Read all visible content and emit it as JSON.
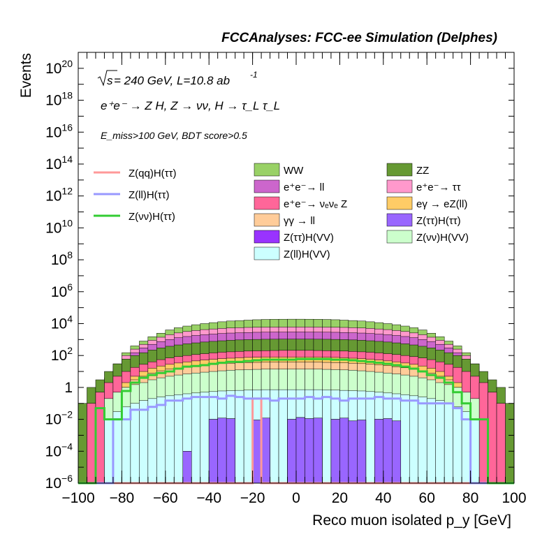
{
  "header": {
    "title": "FCCAnalyses: FCC-ee Simulation (Delphes)",
    "line1_sqrt": "s",
    "line1_rest": " = 240 GeV, L=10.8 ab",
    "line1_sup": "-1",
    "line2": "e⁺e⁻ → Z H, Z → νν, H → τ_L τ_L",
    "line3": "E_miss>100 GeV, BDT score>0.5"
  },
  "chart_data": {
    "type": "area",
    "xlabel": "Reco muon isolated p_y [GeV]",
    "ylabel": "Events",
    "xlim": [
      -100,
      100
    ],
    "ylim": [
      1e-06,
      1e+21
    ],
    "log_y": true,
    "x_ticks": [
      -100,
      -80,
      -60,
      -40,
      -20,
      0,
      20,
      40,
      60,
      80,
      100
    ],
    "x_tick_labels": [
      "−100",
      "−80",
      "−60",
      "−40",
      "−20",
      "0",
      "20",
      "40",
      "60",
      "80",
      "100"
    ],
    "y_ticks": [
      {
        "value": 1e-06,
        "base": "10",
        "exp": "−6"
      },
      {
        "value": 0.0001,
        "base": "10",
        "exp": "−4"
      },
      {
        "value": 0.01,
        "base": "10",
        "exp": "−2"
      },
      {
        "value": 1,
        "base": "1",
        "exp": ""
      },
      {
        "value": 100.0,
        "base": "10",
        "exp": "2"
      },
      {
        "value": 10000.0,
        "base": "10",
        "exp": "4"
      },
      {
        "value": 1000000.0,
        "base": "10",
        "exp": "6"
      },
      {
        "value": 100000000.0,
        "base": "10",
        "exp": "8"
      },
      {
        "value": 10000000000.0,
        "base": "10",
        "exp": "10"
      },
      {
        "value": 1000000000000.0,
        "base": "10",
        "exp": "12"
      },
      {
        "value": 100000000000000.0,
        "base": "10",
        "exp": "14"
      },
      {
        "value": 1e+16,
        "base": "10",
        "exp": "16"
      },
      {
        "value": 1e+18,
        "base": "10",
        "exp": "18"
      },
      {
        "value": 1e+20,
        "base": "10",
        "exp": "20"
      }
    ],
    "bin_edges": [
      -100,
      -96,
      -92,
      -88,
      -84,
      -80,
      -76,
      -72,
      -68,
      -64,
      -60,
      -56,
      -52,
      -48,
      -44,
      -40,
      -36,
      -32,
      -28,
      -24,
      -20,
      -16,
      -12,
      -8,
      -4,
      0,
      4,
      8,
      12,
      16,
      20,
      24,
      28,
      32,
      36,
      40,
      44,
      48,
      52,
      56,
      60,
      64,
      68,
      72,
      76,
      80,
      84,
      88,
      92,
      96,
      100
    ],
    "stack": [
      {
        "name": "WW",
        "color": "#99d166",
        "top": [
          0,
          0,
          0.1,
          4,
          30,
          150,
          400,
          800,
          1500,
          2500,
          4000,
          5500,
          7000,
          8500,
          10000,
          11500,
          13000,
          14500,
          15500,
          16500,
          17500,
          18200,
          18600,
          18800,
          18900,
          18900,
          18800,
          18600,
          18200,
          17500,
          16500,
          15500,
          14500,
          13000,
          11500,
          10000,
          8500,
          7000,
          5500,
          4000,
          2500,
          1500,
          800,
          400,
          150,
          30,
          4,
          0.1,
          0,
          0
        ]
      },
      {
        "name": "e⁺e⁻→ ττ",
        "color": "#ff99cc",
        "top": [
          0,
          0,
          0.1,
          3,
          20,
          100,
          250,
          500,
          900,
          1400,
          2000,
          2600,
          3200,
          3700,
          4200,
          4600,
          5000,
          5300,
          5550,
          5750,
          5900,
          6000,
          6050,
          6100,
          6100,
          6100,
          6100,
          6050,
          6000,
          5900,
          5750,
          5550,
          5300,
          5000,
          4600,
          4200,
          3700,
          3200,
          2600,
          2000,
          1400,
          900,
          500,
          250,
          100,
          20,
          3,
          0.1,
          0,
          0
        ]
      },
      {
        "name": "e⁺e⁻→ ll",
        "color": "#cc66cc",
        "top": [
          0,
          0,
          0.1,
          2,
          15,
          60,
          150,
          300,
          500,
          750,
          1000,
          1300,
          1550,
          1800,
          2000,
          2200,
          2400,
          2550,
          2650,
          2750,
          2850,
          2900,
          2950,
          2950,
          3000,
          3000,
          2950,
          2950,
          2900,
          2850,
          2750,
          2650,
          2550,
          2400,
          2200,
          2000,
          1800,
          1550,
          1300,
          1000,
          750,
          500,
          300,
          150,
          60,
          15,
          2,
          0.1,
          0,
          0
        ]
      },
      {
        "name": "ZZ",
        "color": "#669933",
        "top": [
          0.1,
          1,
          3,
          10,
          30,
          60,
          100,
          150,
          220,
          300,
          380,
          460,
          540,
          620,
          700,
          770,
          840,
          900,
          950,
          990,
          1020,
          1040,
          1050,
          1060,
          1060,
          1060,
          1060,
          1050,
          1040,
          1020,
          990,
          950,
          900,
          840,
          770,
          700,
          620,
          540,
          460,
          380,
          300,
          220,
          150,
          100,
          60,
          30,
          10,
          3,
          1,
          0.1
        ]
      },
      {
        "name": "e⁺e⁻→ νₑνₑ Z",
        "color": "#ff6699",
        "top": [
          0,
          0.1,
          0.5,
          2,
          5,
          10,
          18,
          28,
          40,
          55,
          70,
          85,
          100,
          115,
          130,
          145,
          160,
          170,
          180,
          190,
          195,
          200,
          205,
          210,
          210,
          210,
          210,
          205,
          200,
          195,
          190,
          180,
          170,
          160,
          145,
          130,
          115,
          100,
          85,
          70,
          55,
          40,
          28,
          18,
          10,
          5,
          2,
          0.5,
          0.1,
          0
        ]
      },
      {
        "name": "eγ → eZ(ll)",
        "color": "#ffcc66",
        "top": [
          0,
          0,
          0,
          0,
          0.5,
          2,
          5,
          10,
          16,
          22,
          28,
          34,
          40,
          46,
          52,
          58,
          64,
          68,
          72,
          76,
          78,
          80,
          80,
          80,
          80,
          80,
          80,
          80,
          78,
          76,
          72,
          68,
          64,
          58,
          52,
          46,
          40,
          34,
          28,
          22,
          16,
          10,
          5,
          2,
          0.5,
          0,
          0,
          0,
          0,
          0
        ]
      },
      {
        "name": "γγ → ll",
        "color": "#ffcc99",
        "top": [
          0,
          0,
          0,
          0,
          0.2,
          1,
          3,
          5,
          8,
          11,
          14,
          17,
          20,
          23,
          26,
          29,
          31,
          33,
          35,
          36,
          37,
          38,
          38,
          38,
          38,
          38,
          38,
          38,
          37,
          36,
          35,
          33,
          31,
          29,
          26,
          23,
          20,
          17,
          14,
          11,
          8,
          5,
          3,
          1,
          0.2,
          0,
          0,
          0,
          0,
          0
        ]
      },
      {
        "name": "Z(νν)H(VV)",
        "color": "#ccffcc",
        "top": [
          0,
          0,
          0,
          0.2,
          0.5,
          1,
          1.5,
          2,
          3,
          4,
          5,
          6,
          7,
          8,
          9,
          10,
          11,
          12,
          12.5,
          13,
          13.5,
          14,
          14,
          14,
          14,
          14,
          14,
          14,
          13.5,
          13,
          12.5,
          12,
          11,
          10,
          9,
          8,
          7,
          6,
          5,
          4,
          3,
          2,
          1.5,
          1,
          0.5,
          0.2,
          0,
          0,
          0,
          0
        ]
      },
      {
        "name": "Z(ll)H(VV)",
        "color": "#ccffff",
        "top": [
          0,
          0,
          0,
          0.01,
          0.03,
          0.06,
          0.1,
          0.15,
          0.2,
          0.25,
          0.3,
          0.35,
          0.4,
          0.45,
          0.5,
          0.55,
          0.6,
          0.62,
          0.65,
          0.68,
          0.7,
          0.72,
          0.72,
          0.72,
          0.72,
          0.72,
          0.72,
          0.72,
          0.7,
          0.68,
          0.65,
          0.62,
          0.6,
          0.55,
          0.5,
          0.45,
          0.4,
          0.35,
          0.3,
          0.25,
          0.2,
          0.15,
          0.1,
          0.06,
          0.03,
          0.01,
          0,
          0,
          0,
          0
        ]
      },
      {
        "name": "Z(ττ)H(VV)",
        "color": "#9933ff",
        "top": [
          0,
          0,
          0,
          0,
          0,
          0,
          0,
          0,
          0,
          0,
          0,
          0,
          0.0001,
          0,
          0,
          0.01,
          0.012,
          0.011,
          0,
          0,
          0.009,
          0.012,
          0,
          0,
          0.01,
          0.013,
          0.011,
          0.012,
          0,
          0.01,
          0.012,
          0.008,
          0.009,
          0,
          0.01,
          0.011,
          0.008,
          0,
          0,
          0,
          0,
          0,
          0,
          0,
          0,
          0,
          0,
          0,
          0,
          0
        ]
      },
      {
        "name": "Z(ττ)H(ττ)",
        "color": "#9966ff",
        "top": [
          0,
          0,
          0,
          0,
          0,
          0,
          0,
          0,
          0,
          0,
          0,
          0,
          0.0001,
          0,
          0,
          0.01,
          0.012,
          0.011,
          0,
          0,
          0.009,
          0.012,
          0,
          0,
          0.01,
          0.013,
          0.011,
          0.012,
          0,
          0.01,
          0.012,
          0.008,
          0.009,
          0,
          0.01,
          0.011,
          0.008,
          0,
          0,
          0,
          0,
          0,
          0,
          0,
          0,
          0,
          0,
          0,
          0,
          0
        ]
      }
    ],
    "overlays": [
      {
        "name": "Z(qq)H(ττ)",
        "color": "#ff9999",
        "values": [
          0,
          0,
          0,
          0,
          0,
          0,
          0,
          0,
          0,
          0,
          0,
          0,
          0,
          0,
          0,
          0,
          0,
          0,
          0,
          0,
          0.2,
          0,
          0,
          0,
          0,
          0,
          0,
          0,
          0,
          0,
          0,
          0,
          0,
          0,
          0,
          0,
          0,
          0,
          0,
          0,
          0,
          0,
          0,
          0,
          0,
          0,
          0,
          0,
          0,
          0
        ]
      },
      {
        "name": "Z(ll)H(ττ)",
        "color": "#9999ff",
        "values": [
          0,
          0,
          0,
          0,
          0.01,
          0.01,
          0.04,
          0.04,
          0.06,
          0.08,
          0.15,
          0.15,
          0.2,
          0.25,
          0.25,
          0.25,
          0.2,
          0.3,
          0.25,
          0.2,
          0.2,
          0.2,
          0.15,
          0.2,
          0.2,
          0.2,
          0.25,
          0.2,
          0.25,
          0.2,
          0.15,
          0.2,
          0.2,
          0.2,
          0.25,
          0.2,
          0.2,
          0.15,
          0.15,
          0.1,
          0.1,
          0.1,
          0.1,
          0.05,
          0.01,
          0,
          0,
          0,
          0,
          0
        ]
      },
      {
        "name": "Z(νν)H(ττ)",
        "color": "#33cc33",
        "values": [
          0,
          0,
          0.05,
          0.01,
          0.01,
          0.6,
          2,
          4,
          6,
          8,
          10,
          15,
          20,
          22,
          25,
          30,
          35,
          40,
          40,
          45,
          50,
          55,
          55,
          55,
          55,
          60,
          60,
          60,
          60,
          55,
          55,
          50,
          45,
          40,
          35,
          30,
          25,
          20,
          15,
          10,
          6,
          4,
          2,
          0.5,
          0.1,
          0.01,
          0.01,
          0,
          0,
          0
        ]
      }
    ]
  },
  "legend": {
    "col1": [
      {
        "label": "Z(qq)H(ττ)",
        "color": "#ff9999"
      },
      {
        "label": "Z(ll)H(ττ)",
        "color": "#9999ff"
      },
      {
        "label": "Z(νν)H(ττ)",
        "color": "#33cc33"
      }
    ],
    "col2": [
      {
        "label": "WW",
        "color": "#99d166"
      },
      {
        "label": "e⁺e⁻→ ll",
        "color": "#cc66cc"
      },
      {
        "label": "e⁺e⁻→ νₑνₑ Z",
        "color": "#ff6699"
      },
      {
        "label": "γγ → ll",
        "color": "#ffcc99"
      },
      {
        "label": "Z(ττ)H(VV)",
        "color": "#9933ff"
      },
      {
        "label": "Z(ll)H(VV)",
        "color": "#ccffff"
      }
    ],
    "col3": [
      {
        "label": "ZZ",
        "color": "#669933"
      },
      {
        "label": "e⁺e⁻→ ττ",
        "color": "#ff99cc"
      },
      {
        "label": "eγ → eZ(ll)",
        "color": "#ffcc66"
      },
      {
        "label": "Z(ττ)H(ττ)",
        "color": "#9966ff"
      },
      {
        "label": "Z(νν)H(VV)",
        "color": "#ccffcc"
      }
    ]
  }
}
